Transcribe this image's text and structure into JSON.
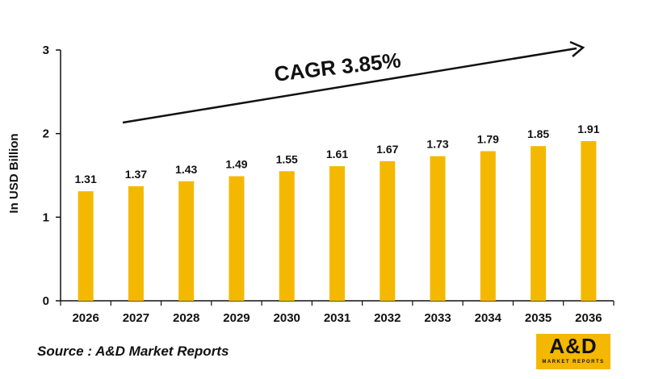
{
  "chart_data": {
    "type": "bar",
    "categories": [
      "2026",
      "2027",
      "2028",
      "2029",
      "2030",
      "2031",
      "2032",
      "2033",
      "2034",
      "2035",
      "2036"
    ],
    "values": [
      1.31,
      1.37,
      1.43,
      1.49,
      1.55,
      1.61,
      1.67,
      1.73,
      1.79,
      1.85,
      1.91
    ],
    "value_labels": [
      "1.31",
      "1.37",
      "1.43",
      "1.49",
      "1.55",
      "1.61",
      "1.67",
      "1.73",
      "1.79",
      "1.85",
      "1.91"
    ],
    "yticks": [
      "0",
      "1",
      "2",
      "3"
    ],
    "ylim": [
      0,
      3
    ],
    "ylabel": "In USD Billion",
    "annotation": "CAGR 3.85%",
    "bar_color": "#f5b800",
    "grid": false
  },
  "source": "Source : A&D Market Reports",
  "logo": {
    "main": "A&D",
    "sub": "MARKET REPORTS",
    "color": "#f5b800"
  }
}
